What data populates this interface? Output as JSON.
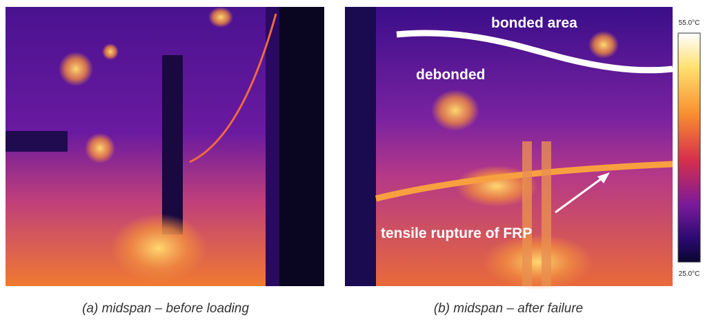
{
  "panels": [
    {
      "caption": "(a) midspan – before loading"
    },
    {
      "caption": "(b) midspan – after failure",
      "annotations": [
        "bonded area",
        "debonded",
        "tensile rupture of FRP"
      ]
    }
  ],
  "colorbar": {
    "max_label": "55.0°C",
    "min_label": "25.0°C"
  }
}
